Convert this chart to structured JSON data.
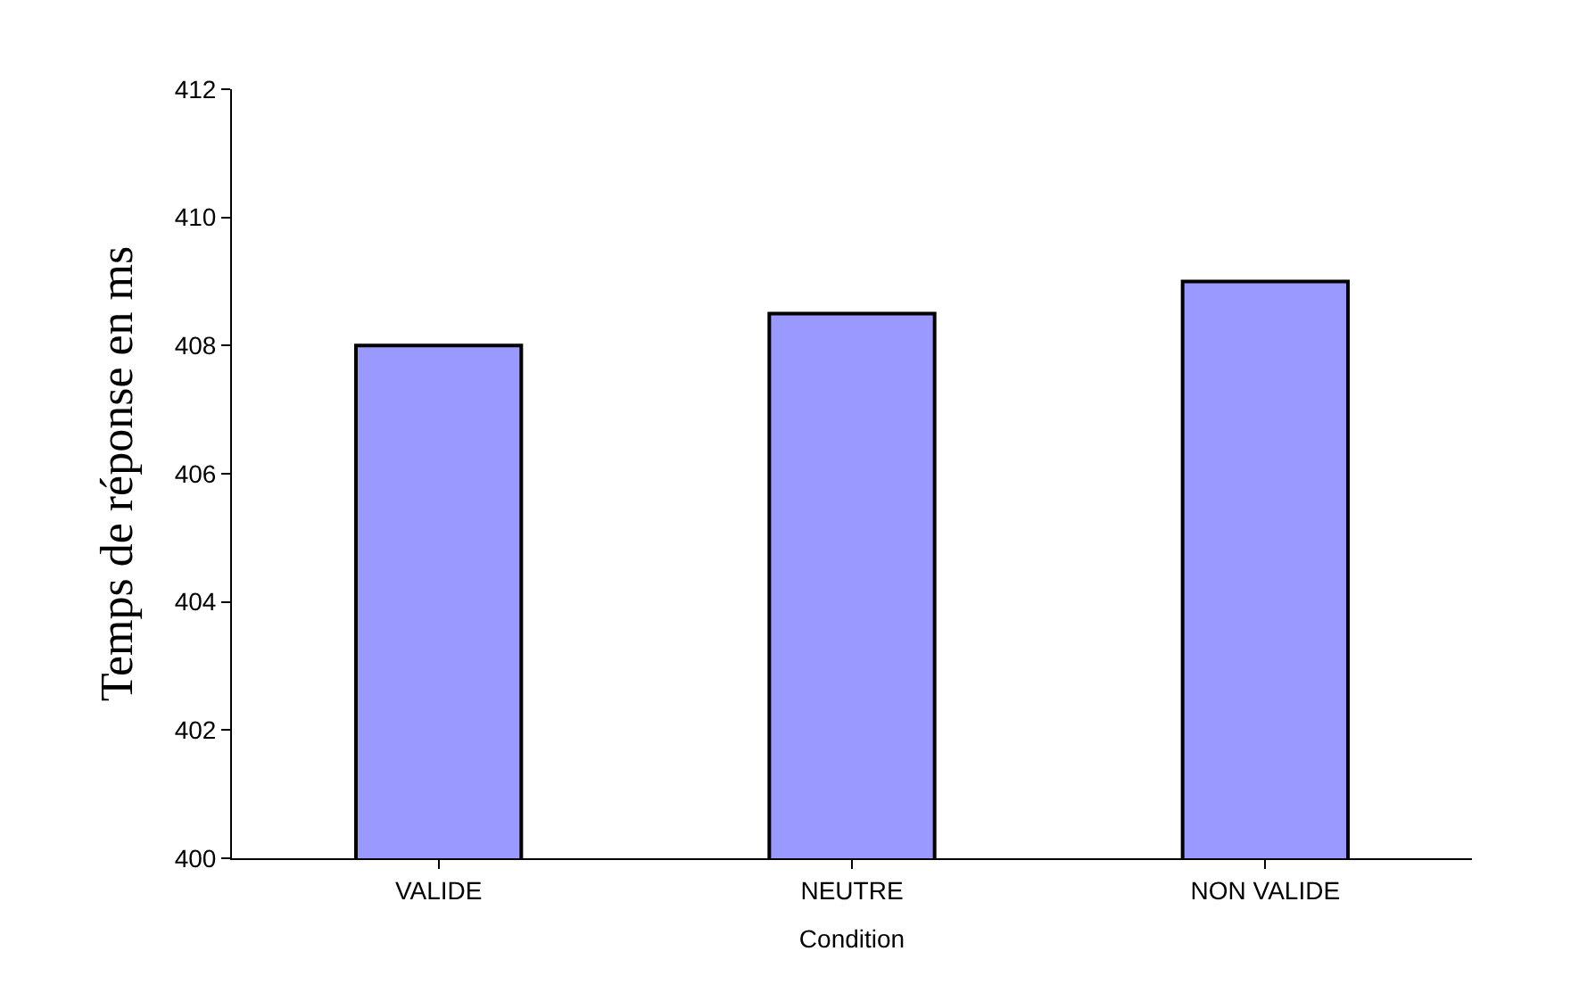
{
  "chart_data": {
    "type": "bar",
    "xlabel": "Condition",
    "ylabel": "Temps de réponse en ms",
    "categories": [
      "VALIDE",
      "NEUTRE",
      "NON VALIDE"
    ],
    "values": [
      408.0,
      408.5,
      409.0
    ],
    "color": "#9999ff",
    "ylim": [
      400,
      412
    ],
    "yticks": [
      400,
      402,
      404,
      406,
      408,
      410,
      412
    ],
    "grid": false
  }
}
